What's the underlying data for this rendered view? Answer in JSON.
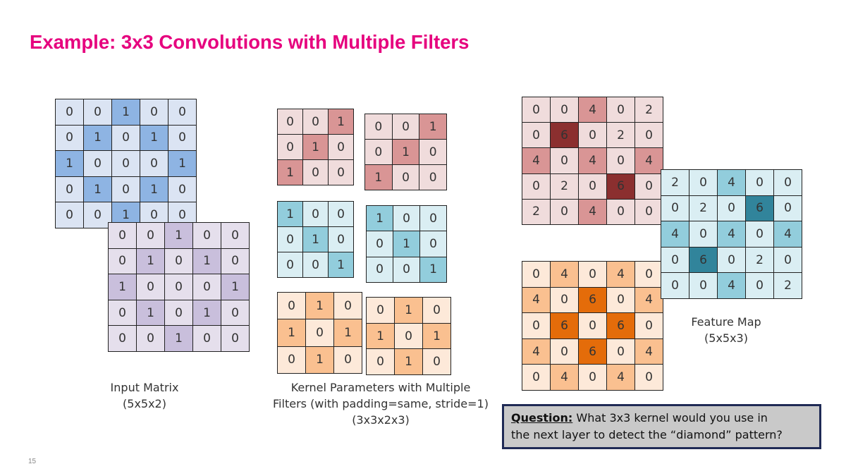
{
  "title": "Example: 3x3 Convolutions with Multiple Filters",
  "colors": {
    "title": "#e6007e",
    "blue_light": "#dbe4f3",
    "blue_dark": "#8eb4e3",
    "purple_light": "#e5dfec",
    "purple_dark": "#c9bfdc",
    "red_light": "#f0dcdc",
    "red_mid": "#d99595",
    "red_dark": "#8b2f2f",
    "teal_light": "#daeef3",
    "teal_mid": "#92cddc",
    "teal_dark": "#31849b",
    "orange_light": "#fde9d9",
    "orange_mid": "#fac090",
    "orange_dark": "#e46c0a"
  },
  "matrices": {
    "input_ch1": [
      [
        0,
        0,
        1,
        0,
        0
      ],
      [
        0,
        1,
        0,
        1,
        0
      ],
      [
        1,
        0,
        0,
        0,
        1
      ],
      [
        0,
        1,
        0,
        1,
        0
      ],
      [
        0,
        0,
        1,
        0,
        0
      ]
    ],
    "input_ch2": [
      [
        0,
        0,
        1,
        0,
        0
      ],
      [
        0,
        1,
        0,
        1,
        0
      ],
      [
        1,
        0,
        0,
        0,
        1
      ],
      [
        0,
        1,
        0,
        1,
        0
      ],
      [
        0,
        0,
        1,
        0,
        0
      ]
    ],
    "kernel_f1_c1": [
      [
        0,
        0,
        1
      ],
      [
        0,
        1,
        0
      ],
      [
        1,
        0,
        0
      ]
    ],
    "kernel_f1_c2": [
      [
        0,
        0,
        1
      ],
      [
        0,
        1,
        0
      ],
      [
        1,
        0,
        0
      ]
    ],
    "kernel_f2_c1": [
      [
        1,
        0,
        0
      ],
      [
        0,
        1,
        0
      ],
      [
        0,
        0,
        1
      ]
    ],
    "kernel_f2_c2": [
      [
        1,
        0,
        0
      ],
      [
        0,
        1,
        0
      ],
      [
        0,
        0,
        1
      ]
    ],
    "kernel_f3_c1": [
      [
        0,
        1,
        0
      ],
      [
        1,
        0,
        1
      ],
      [
        0,
        1,
        0
      ]
    ],
    "kernel_f3_c2": [
      [
        0,
        1,
        0
      ],
      [
        1,
        0,
        1
      ],
      [
        0,
        1,
        0
      ]
    ],
    "feature_f1": [
      [
        0,
        0,
        4,
        0,
        2
      ],
      [
        0,
        6,
        0,
        2,
        0
      ],
      [
        4,
        0,
        4,
        0,
        4
      ],
      [
        0,
        2,
        0,
        6,
        0
      ],
      [
        2,
        0,
        4,
        0,
        0
      ]
    ],
    "feature_f2": [
      [
        2,
        0,
        4,
        0,
        0
      ],
      [
        0,
        2,
        0,
        6,
        0
      ],
      [
        4,
        0,
        4,
        0,
        4
      ],
      [
        0,
        6,
        0,
        2,
        0
      ],
      [
        0,
        0,
        4,
        0,
        2
      ]
    ],
    "feature_f3": [
      [
        0,
        4,
        0,
        4,
        0
      ],
      [
        4,
        0,
        6,
        0,
        4
      ],
      [
        0,
        6,
        0,
        6,
        0
      ],
      [
        4,
        0,
        6,
        0,
        4
      ],
      [
        0,
        4,
        0,
        4,
        0
      ]
    ]
  },
  "captions": {
    "input": [
      "Input Matrix",
      "(5x5x2)"
    ],
    "kernel": [
      "Kernel Parameters with Multiple",
      "Filters (with padding=same, stride=1)",
      "(3x3x2x3)"
    ],
    "feature": [
      "Feature Map",
      "(5x5x3)"
    ]
  },
  "question": {
    "label": "Question:",
    "line1": " What 3x3 kernel would you use in",
    "line2": "the next layer to detect the “diamond” pattern?"
  },
  "page_number": "15"
}
